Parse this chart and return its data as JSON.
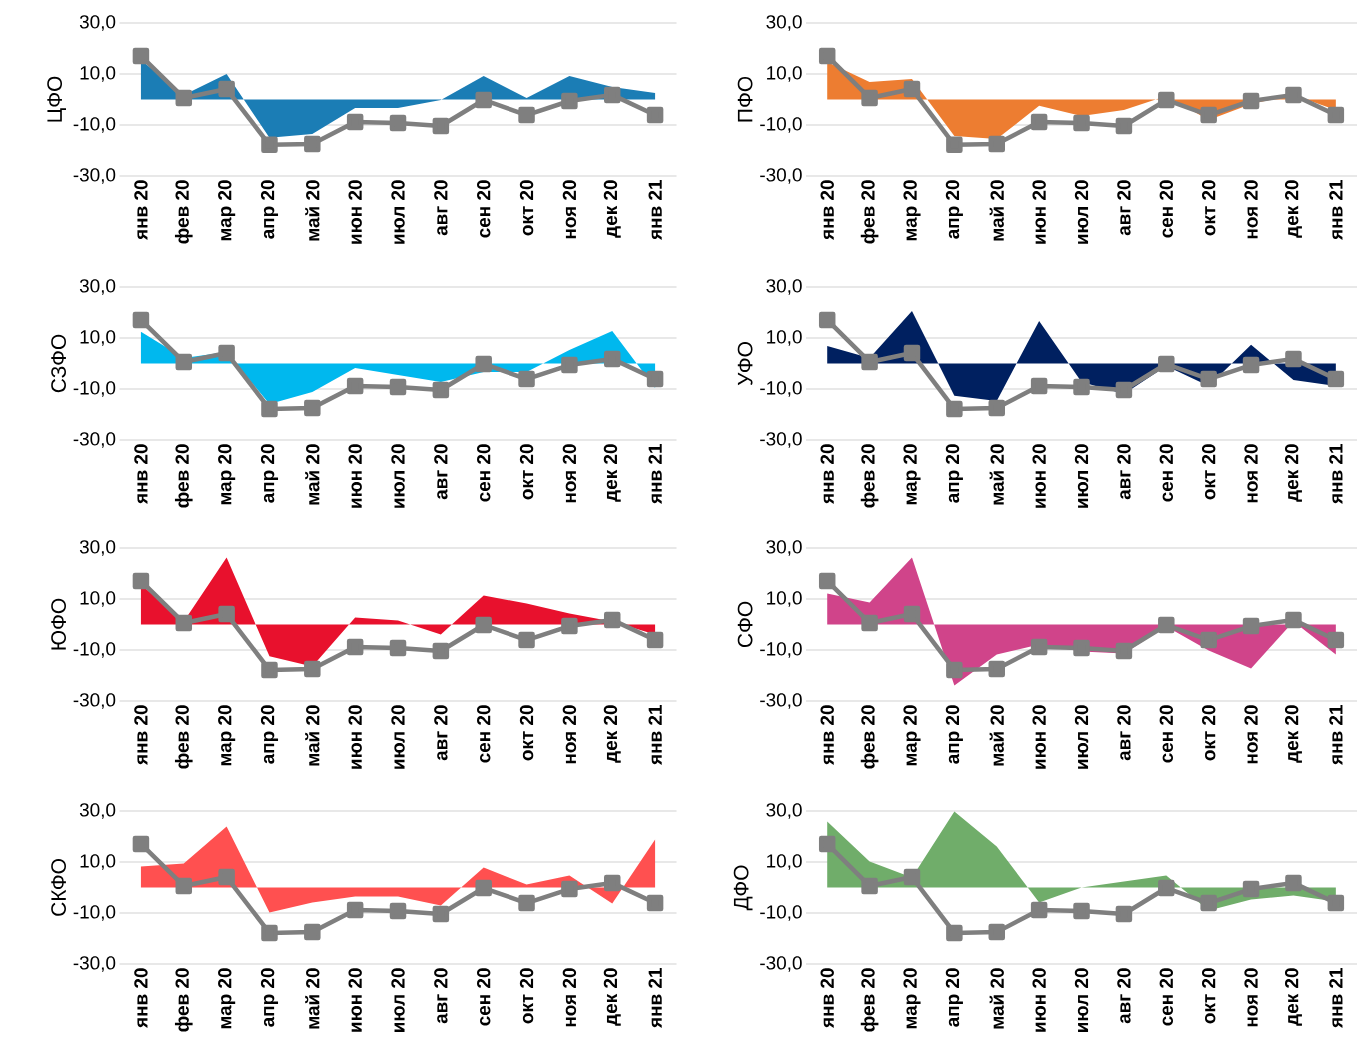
{
  "chart_data": [
    {
      "type": "area",
      "ylabel": "ЦФО",
      "categories": [
        "янв 20",
        "фев 20",
        "мар 20",
        "апр 20",
        "май 20",
        "июн 20",
        "июл 20",
        "авг 20",
        "сен 20",
        "окт 20",
        "ноя 20",
        "дек 20",
        "янв 21"
      ],
      "ylim": [
        -30,
        30
      ],
      "yticks": [
        {
          "value": -30,
          "label": "-30,0"
        },
        {
          "value": -10,
          "label": "-10,0"
        },
        {
          "value": 10,
          "label": "10,0"
        },
        {
          "value": 30,
          "label": "30,0"
        }
      ],
      "grid": "y",
      "series": [
        {
          "color": "#1b7db5",
          "values": [
            15.5,
            1.8,
            10,
            -15,
            -13.5,
            -3.3,
            -3.3,
            -0.2,
            9.2,
            0.6,
            9.2,
            4.9,
            2.5
          ]
        },
        {
          "type": "line",
          "marker": "square",
          "color": "#7f7f7f",
          "values": [
            17.1,
            0.6,
            4.1,
            -17.8,
            -17.5,
            -8.8,
            -9.2,
            -10.4,
            -0.2,
            -6.1,
            -0.6,
            1.8,
            -6.1
          ]
        }
      ]
    },
    {
      "type": "area",
      "ylabel": "ПФО",
      "categories": [
        "янв 20",
        "фев 20",
        "мар 20",
        "апр 20",
        "май 20",
        "июн 20",
        "июл 20",
        "авг 20",
        "сен 20",
        "окт 20",
        "ноя 20",
        "дек 20",
        "янв 21"
      ],
      "ylim": [
        -30,
        30
      ],
      "yticks": [
        {
          "value": -30,
          "label": "-30,0"
        },
        {
          "value": -10,
          "label": "-10,0"
        },
        {
          "value": 10,
          "label": "10,0"
        },
        {
          "value": 30,
          "label": "30,0"
        }
      ],
      "grid": "y",
      "series": [
        {
          "color": "#ed7d31",
          "values": [
            14.7,
            6.9,
            8.0,
            -14.3,
            -15.5,
            -2.5,
            -6.5,
            -4.1,
            1.4,
            -8.0,
            -1.8,
            1.8,
            -4.1
          ]
        },
        {
          "type": "line",
          "marker": "square",
          "color": "#7f7f7f",
          "values": [
            17.1,
            0.6,
            4.1,
            -17.8,
            -17.5,
            -8.8,
            -9.2,
            -10.4,
            -0.2,
            -6.1,
            -0.6,
            1.8,
            -6.1
          ]
        }
      ]
    },
    {
      "type": "area",
      "ylabel": "СЗФО",
      "categories": [
        "янв 20",
        "фев 20",
        "мар 20",
        "апр 20",
        "май 20",
        "июн 20",
        "июл 20",
        "авг 20",
        "сен 20",
        "окт 20",
        "ноя 20",
        "дек 20",
        "янв 21"
      ],
      "ylim": [
        -30,
        30
      ],
      "yticks": [
        {
          "value": -30,
          "label": "-30,0"
        },
        {
          "value": -10,
          "label": "-10,0"
        },
        {
          "value": 10,
          "label": "10,0"
        },
        {
          "value": 30,
          "label": "30,0"
        }
      ],
      "grid": "y",
      "series": [
        {
          "color": "#00b8ee",
          "values": [
            12.4,
            2.2,
            4.5,
            -15.9,
            -11.2,
            -1.8,
            -4.5,
            -7.3,
            -3.3,
            -3.3,
            5.3,
            12.7,
            -9.6
          ]
        },
        {
          "type": "line",
          "marker": "square",
          "color": "#7f7f7f",
          "values": [
            17.1,
            0.6,
            4.1,
            -17.8,
            -17.5,
            -8.8,
            -9.2,
            -10.4,
            -0.2,
            -6.1,
            -0.6,
            1.8,
            -6.1
          ]
        }
      ]
    },
    {
      "type": "area",
      "ylabel": "УФО",
      "categories": [
        "янв 20",
        "фев 20",
        "мар 20",
        "апр 20",
        "май 20",
        "июн 20",
        "июл 20",
        "авг 20",
        "сен 20",
        "окт 20",
        "ноя 20",
        "дек 20",
        "янв 21"
      ],
      "ylim": [
        -30,
        30
      ],
      "yticks": [
        {
          "value": -30,
          "label": "-30,0"
        },
        {
          "value": -10,
          "label": "-10,0"
        },
        {
          "value": 10,
          "label": "10,0"
        },
        {
          "value": 30,
          "label": "30,0"
        }
      ],
      "grid": "y",
      "series": [
        {
          "color": "#002060",
          "values": [
            6.9,
            2.2,
            20.6,
            -12.7,
            -14.7,
            16.7,
            -7.3,
            -12,
            -1.0,
            -8.8,
            7.3,
            -6.5,
            -8.8
          ]
        },
        {
          "type": "line",
          "marker": "square",
          "color": "#7f7f7f",
          "values": [
            17.1,
            0.6,
            4.1,
            -17.8,
            -17.5,
            -8.8,
            -9.2,
            -10.4,
            -0.2,
            -6.1,
            -0.6,
            1.8,
            -6.1
          ]
        }
      ]
    },
    {
      "type": "area",
      "ylabel": "ЮФО",
      "categories": [
        "янв 20",
        "фев 20",
        "мар 20",
        "апр 20",
        "май 20",
        "июн 20",
        "июл 20",
        "авг 20",
        "сен 20",
        "окт 20",
        "ноя 20",
        "дек 20",
        "янв 21"
      ],
      "ylim": [
        -30,
        30
      ],
      "yticks": [
        {
          "value": -30,
          "label": "-30,0"
        },
        {
          "value": -10,
          "label": "-10,0"
        },
        {
          "value": 10,
          "label": "10,0"
        },
        {
          "value": 30,
          "label": "30,0"
        }
      ],
      "grid": "y",
      "series": [
        {
          "color": "#e8112d",
          "values": [
            15.7,
            1.2,
            26.3,
            -12.5,
            -16.5,
            2.7,
            1.6,
            -3.9,
            11.4,
            8.2,
            4.3,
            1.2,
            -3.9
          ]
        },
        {
          "type": "line",
          "marker": "square",
          "color": "#7f7f7f",
          "values": [
            17.1,
            0.6,
            4.1,
            -17.8,
            -17.5,
            -8.8,
            -9.2,
            -10.4,
            -0.2,
            -6.1,
            -0.6,
            1.8,
            -6.1
          ]
        }
      ]
    },
    {
      "type": "area",
      "ylabel": "СФО",
      "categories": [
        "янв 20",
        "фев 20",
        "мар 20",
        "апр 20",
        "май 20",
        "июн 20",
        "июл 20",
        "авг 20",
        "сен 20",
        "окт 20",
        "ноя 20",
        "дек 20",
        "янв 21"
      ],
      "ylim": [
        -30,
        30
      ],
      "yticks": [
        {
          "value": -30,
          "label": "-30,0"
        },
        {
          "value": -10,
          "label": "-10,0"
        },
        {
          "value": 10,
          "label": "10,0"
        },
        {
          "value": 30,
          "label": "30,0"
        }
      ],
      "grid": "y",
      "series": [
        {
          "color": "#d0448a",
          "values": [
            12.2,
            8.6,
            26.3,
            -23.9,
            -11.8,
            -7.8,
            -10.6,
            -11.4,
            -0.8,
            -10.2,
            -17.3,
            1.2,
            -11.8
          ]
        },
        {
          "type": "line",
          "marker": "square",
          "color": "#7f7f7f",
          "values": [
            17.1,
            0.6,
            4.1,
            -17.8,
            -17.5,
            -8.8,
            -9.2,
            -10.4,
            -0.2,
            -6.1,
            -0.6,
            1.8,
            -6.1
          ]
        }
      ]
    },
    {
      "type": "area",
      "ylabel": "СКФО",
      "categories": [
        "янв 20",
        "фев 20",
        "мар 20",
        "апр 20",
        "май 20",
        "июн 20",
        "июл 20",
        "авг 20",
        "сен 20",
        "окт 20",
        "ноя 20",
        "дек 20",
        "янв 21"
      ],
      "ylim": [
        -30,
        30
      ],
      "yticks": [
        {
          "value": -30,
          "label": "-30,0"
        },
        {
          "value": -10,
          "label": "-10,0"
        },
        {
          "value": 10,
          "label": "10,0"
        },
        {
          "value": 30,
          "label": "30,0"
        }
      ],
      "grid": "y",
      "series": [
        {
          "color": "#ff5050",
          "values": [
            8.2,
            9.4,
            23.9,
            -9.8,
            -5.9,
            -3.5,
            -3.5,
            -7.1,
            7.8,
            1.2,
            4.7,
            -6.3,
            18.8
          ]
        },
        {
          "type": "line",
          "marker": "square",
          "color": "#7f7f7f",
          "values": [
            17.1,
            0.6,
            4.1,
            -17.8,
            -17.5,
            -8.8,
            -9.2,
            -10.4,
            -0.2,
            -6.1,
            -0.6,
            1.8,
            -6.1
          ]
        }
      ]
    },
    {
      "type": "area",
      "ylabel": "ДФО",
      "categories": [
        "янв 20",
        "фев 20",
        "мар 20",
        "апр 20",
        "май 20",
        "июн 20",
        "июл 20",
        "авг 20",
        "сен 20",
        "окт 20",
        "ноя 20",
        "дек 20",
        "янв 21"
      ],
      "ylim": [
        -30,
        30
      ],
      "yticks": [
        {
          "value": -30,
          "label": "-30,0"
        },
        {
          "value": -10,
          "label": "-10,0"
        },
        {
          "value": 10,
          "label": "10,0"
        },
        {
          "value": 30,
          "label": "30,0"
        }
      ],
      "grid": "y",
      "series": [
        {
          "color": "#70ad6a",
          "values": [
            25.9,
            10.2,
            3.9,
            29.8,
            16.1,
            -5.9,
            0,
            2.4,
            4.7,
            -9.0,
            -4.7,
            -3.1,
            -5.5
          ]
        },
        {
          "type": "line",
          "marker": "square",
          "color": "#7f7f7f",
          "values": [
            17.1,
            0.6,
            4.1,
            -17.8,
            -17.5,
            -8.8,
            -9.2,
            -10.4,
            -0.2,
            -6.1,
            -0.6,
            1.8,
            -6.1
          ]
        }
      ]
    }
  ]
}
